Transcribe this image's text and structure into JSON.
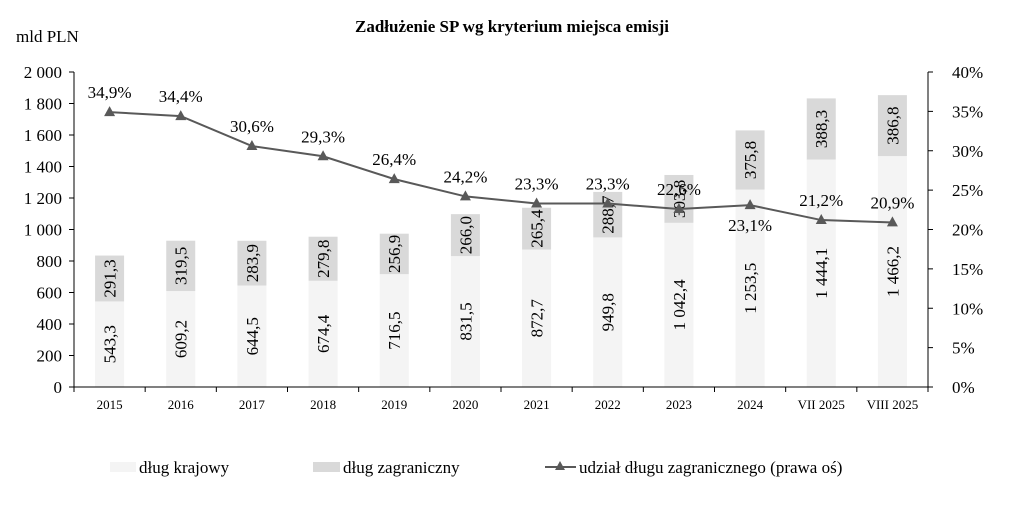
{
  "chart_data": {
    "type": "bar",
    "stacked": true,
    "title": "Zadłużenie SP wg kryterium miejsca emisji",
    "ylabel": "mld PLN",
    "ylim": [
      0,
      2000
    ],
    "yticks": [
      "0",
      "200",
      "400",
      "600",
      "800",
      "1 000",
      "1 200",
      "1 400",
      "1 600",
      "1 800",
      "2 000"
    ],
    "y2lim": [
      0,
      40
    ],
    "y2ticks": [
      "0%",
      "5%",
      "10%",
      "15%",
      "20%",
      "25%",
      "30%",
      "35%",
      "40%"
    ],
    "categories": [
      "2015",
      "2016",
      "2017",
      "2018",
      "2019",
      "2020",
      "2021",
      "2022",
      "2023",
      "2024",
      "VII 2025",
      "VIII 2025"
    ],
    "series": [
      {
        "name": "dług krajowy",
        "type": "bar",
        "axis": "left",
        "color": "#f4f4f4",
        "values": [
          543.3,
          609.2,
          644.5,
          674.4,
          716.5,
          831.5,
          872.7,
          949.8,
          1042.4,
          1253.5,
          1444.1,
          1466.2
        ],
        "labels": [
          "543,3",
          "609,2",
          "644,5",
          "674,4",
          "716,5",
          "831,5",
          "872,7",
          "949,8",
          "1 042,4",
          "1 253,5",
          "1 444,1",
          "1 466,2"
        ]
      },
      {
        "name": "dług zagraniczny",
        "type": "bar",
        "axis": "left",
        "color": "#d9d9d9",
        "values": [
          291.3,
          319.5,
          283.9,
          279.8,
          256.9,
          266.0,
          265.4,
          288.7,
          303.8,
          375.8,
          388.3,
          386.8
        ],
        "labels": [
          "291,3",
          "319,5",
          "283,9",
          "279,8",
          "256,9",
          "266,0",
          "265,4",
          "288,7",
          "303,8",
          "375,8",
          "388,3",
          "386,8"
        ]
      },
      {
        "name": "udział długu zagranicznego (prawa oś)",
        "type": "line",
        "axis": "right",
        "color": "#595959",
        "marker": "triangle",
        "values": [
          34.9,
          34.4,
          30.6,
          29.3,
          26.4,
          24.2,
          23.3,
          23.3,
          22.6,
          23.1,
          21.2,
          20.9
        ],
        "labels": [
          "34,9%",
          "34,4%",
          "30,6%",
          "29,3%",
          "26,4%",
          "24,2%",
          "23,3%",
          "23,3%",
          "22,6%",
          "23,1%",
          "21,2%",
          "20,9%"
        ]
      }
    ],
    "legend_position": "bottom",
    "grid": false
  }
}
